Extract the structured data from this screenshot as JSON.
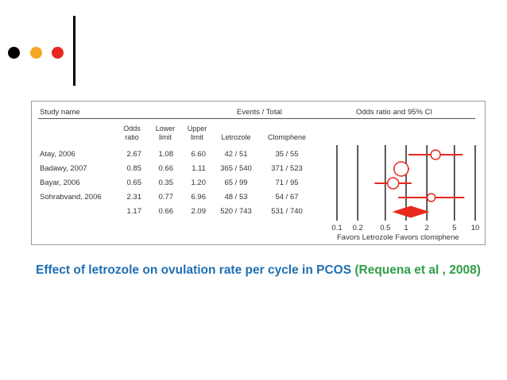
{
  "decor": {
    "dot_colors": [
      "#000000",
      "#f5a623",
      "#e8281e"
    ]
  },
  "figure": {
    "headers": {
      "study": "Study name",
      "events": "Events / Total",
      "ci": "Odds ratio and 95% CI"
    },
    "subheaders": {
      "odds": [
        "Odds",
        "ratio"
      ],
      "lower": [
        "Lower",
        "limit"
      ],
      "upper": [
        "Upper",
        "limit"
      ],
      "letrozole": "Letrozole",
      "clomiphene": "Clomiphene"
    },
    "rows": [
      {
        "name": "Atay, 2006",
        "or": "2.67",
        "lower": "1.08",
        "upper": "6.60",
        "letrozole": "42 / 51",
        "clomiphene": "35 / 55"
      },
      {
        "name": "Badawy, 2007",
        "or": "0.85",
        "lower": "0.66",
        "upper": "1.11",
        "letrozole": "365 / 540",
        "clomiphene": "371 / 523"
      },
      {
        "name": "Bayar, 2006",
        "or": "0.65",
        "lower": "0.35",
        "upper": "1.20",
        "letrozole": "65 / 99",
        "clomiphene": "71 / 95"
      },
      {
        "name": "Sohrabvand, 2006",
        "or": "2.31",
        "lower": "0.77",
        "upper": "6.96",
        "letrozole": "48 / 53",
        "clomiphene": "54 / 67"
      },
      {
        "name": "",
        "or": "1.17",
        "lower": "0.66",
        "upper": "2.09",
        "letrozole": "520 / 743",
        "clomiphene": "531 / 740"
      }
    ],
    "axis_note": "Favors Letrozole Favors clomiphene"
  },
  "chart_data": {
    "type": "forest",
    "x_scale": "log",
    "xlim": [
      0.1,
      10
    ],
    "x_ticks": [
      "0.1",
      "0.2",
      "0.5",
      "1",
      "2",
      "5",
      "10"
    ],
    "marker_color": "#e8281e",
    "studies": [
      {
        "name": "Atay, 2006",
        "or": 2.67,
        "lower": 1.08,
        "upper": 6.6,
        "size": 12
      },
      {
        "name": "Badawy, 2007",
        "or": 0.85,
        "lower": 0.66,
        "upper": 1.11,
        "size": 18
      },
      {
        "name": "Bayar, 2006",
        "or": 0.65,
        "lower": 0.35,
        "upper": 1.2,
        "size": 14
      },
      {
        "name": "Sohrabvand, 2006",
        "or": 2.31,
        "lower": 0.77,
        "upper": 6.96,
        "size": 10
      }
    ],
    "summary": {
      "or": 1.17,
      "lower": 0.66,
      "upper": 2.09
    }
  },
  "caption": {
    "main": "Effect of letrozole on ovulation rate per cycle in PCOS ",
    "cite": "(Requena et al , 2008)"
  }
}
